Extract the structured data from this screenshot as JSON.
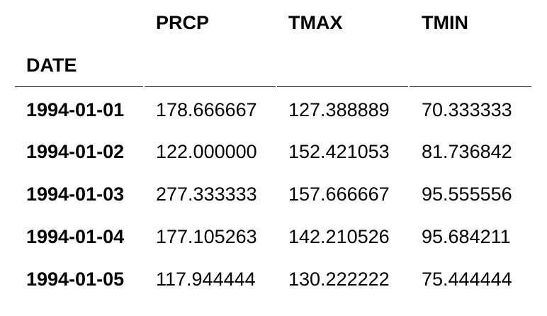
{
  "table": {
    "columns": [
      "PRCP",
      "TMAX",
      "TMIN"
    ],
    "index_name": "DATE",
    "rows": [
      {
        "date": "1994-01-01",
        "values": [
          "178.666667",
          "127.388889",
          "70.333333"
        ]
      },
      {
        "date": "1994-01-02",
        "values": [
          "122.000000",
          "152.421053",
          "81.736842"
        ]
      },
      {
        "date": "1994-01-03",
        "values": [
          "277.333333",
          "157.666667",
          "95.555556"
        ]
      },
      {
        "date": "1994-01-04",
        "values": [
          "177.105263",
          "142.210526",
          "95.684211"
        ]
      },
      {
        "date": "1994-01-05",
        "values": [
          "117.944444",
          "130.222222",
          "75.444444"
        ]
      }
    ]
  }
}
